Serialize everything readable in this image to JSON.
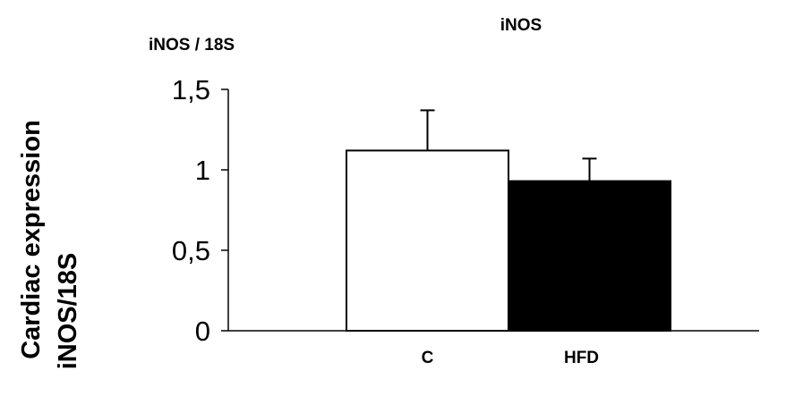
{
  "chart_data": {
    "type": "bar",
    "title": "iNOS",
    "subtitle": "iNOS / 18S",
    "ylabel_line1": "Cardiac expression",
    "ylabel_line2": "iNOS/18S",
    "xlabel": "",
    "categories": [
      "C",
      "HFD"
    ],
    "values": [
      1.12,
      0.93
    ],
    "errors": [
      0.25,
      0.14
    ],
    "bar_colors": [
      "#ffffff",
      "#000000"
    ],
    "ylim": [
      0,
      1.5
    ],
    "yticks": [
      0,
      0.5,
      1,
      1.5
    ],
    "ytick_labels": [
      "0",
      "0,5",
      "1",
      "1,5"
    ],
    "grid": false,
    "legend": "none"
  }
}
